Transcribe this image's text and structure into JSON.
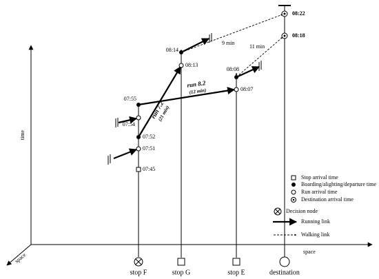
{
  "axes": {
    "time": "time",
    "space": "space",
    "space_diagonal": "space"
  },
  "stops": [
    {
      "label": "stop F"
    },
    {
      "label": "stop G"
    },
    {
      "label": "stop E"
    },
    {
      "label": "destination"
    }
  ],
  "times": {
    "f_arrival": "07:45",
    "f_run_arrival_1": "07:51",
    "f_board_1": "07:52",
    "f_run_arrival_2": "07:54",
    "f_board_2": "07:55",
    "g_run_arrival": "08:13",
    "g_board": "08:14",
    "e_run_arrival": "08:07",
    "e_board": "08:08",
    "dest_1": "08:18",
    "dest_2": "08:22"
  },
  "links": {
    "run_1": {
      "name": "run 7.2",
      "duration": "(21 min)"
    },
    "run_2": {
      "name": "run 8.2",
      "duration": "(12 min)"
    },
    "walk_1": "9 min",
    "walk_2": "11 min"
  },
  "legend": {
    "stop_arrival": "Stop arrival time",
    "boarding": "Boarding/alighting/departure time",
    "run_arrival": "Run arrival time",
    "destination_arrival": "Destination  arrival time",
    "decision_node": "Decision node",
    "running_link": "Running link",
    "walking_link": "Walking link"
  }
}
